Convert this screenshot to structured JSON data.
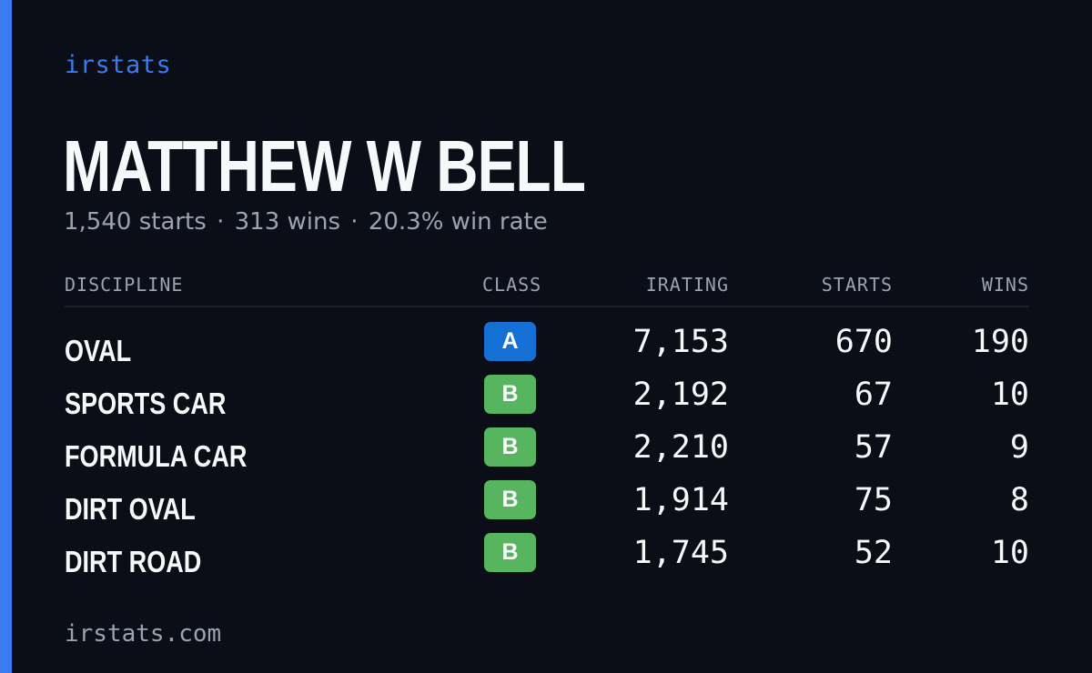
{
  "colors": {
    "background": "#0b0e16",
    "accent": "#3b7bf0",
    "text_muted": "#9aa3b2",
    "class_a": "#1570d6",
    "class_b": "#57b560"
  },
  "brand": "irstats",
  "driver": {
    "name": "MATTHEW W BELL",
    "starts": "1,540 starts",
    "wins": "313 wins",
    "win_rate": "20.3% win rate",
    "separator": "·"
  },
  "table": {
    "headers": {
      "discipline": "DISCIPLINE",
      "class": "CLASS",
      "irating": "IRATING",
      "starts": "STARTS",
      "wins": "WINS"
    },
    "rows": [
      {
        "discipline": "OVAL",
        "class": "A",
        "class_color": "#1570d6",
        "irating": "7,153",
        "starts": "670",
        "wins": "190"
      },
      {
        "discipline": "SPORTS CAR",
        "class": "B",
        "class_color": "#57b560",
        "irating": "2,192",
        "starts": "67",
        "wins": "10"
      },
      {
        "discipline": "FORMULA CAR",
        "class": "B",
        "class_color": "#57b560",
        "irating": "2,210",
        "starts": "57",
        "wins": "9"
      },
      {
        "discipline": "DIRT OVAL",
        "class": "B",
        "class_color": "#57b560",
        "irating": "1,914",
        "starts": "75",
        "wins": "8"
      },
      {
        "discipline": "DIRT ROAD",
        "class": "B",
        "class_color": "#57b560",
        "irating": "1,745",
        "starts": "52",
        "wins": "10"
      }
    ]
  },
  "footer": "irstats.com"
}
